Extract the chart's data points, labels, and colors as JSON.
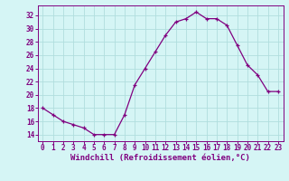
{
  "x": [
    0,
    1,
    2,
    3,
    4,
    5,
    6,
    7,
    8,
    9,
    10,
    11,
    12,
    13,
    14,
    15,
    16,
    17,
    18,
    19,
    20,
    21,
    22,
    23
  ],
  "y": [
    18,
    17,
    16,
    15.5,
    15,
    14,
    14,
    14,
    17,
    21.5,
    24,
    26.5,
    29,
    31,
    31.5,
    32.5,
    31.5,
    31.5,
    30.5,
    27.5,
    24.5,
    23,
    20.5,
    20.5
  ],
  "line_color": "#800080",
  "marker_color": "#800080",
  "bg_color": "#d5f5f5",
  "grid_color": "#b0dede",
  "axis_color": "#800080",
  "xlabel": "Windchill (Refroidissement éolien,°C)",
  "ylabel_ticks": [
    14,
    16,
    18,
    20,
    22,
    24,
    26,
    28,
    30,
    32
  ],
  "xlim": [
    -0.5,
    23.5
  ],
  "ylim": [
    13.0,
    33.5
  ],
  "xticks": [
    0,
    1,
    2,
    3,
    4,
    5,
    6,
    7,
    8,
    9,
    10,
    11,
    12,
    13,
    14,
    15,
    16,
    17,
    18,
    19,
    20,
    21,
    22,
    23
  ],
  "label_fontsize": 6.5,
  "tick_fontsize": 5.5
}
